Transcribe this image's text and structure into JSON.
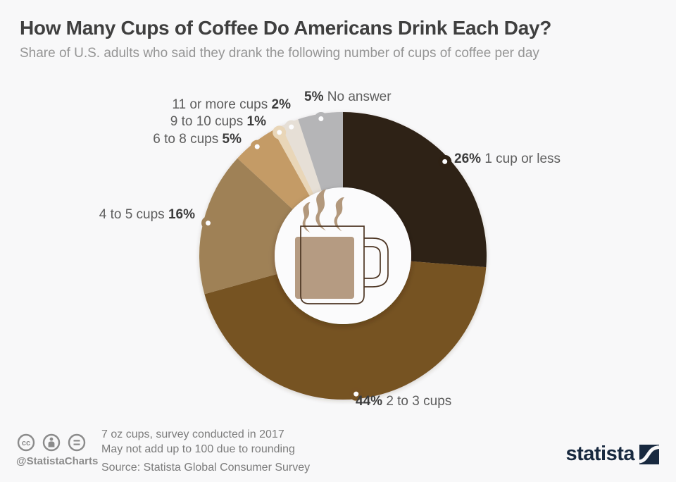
{
  "header": {
    "title": "How Many Cups of Coffee Do Americans Drink Each Day?",
    "subtitle": "Share of U.S. adults who said they drank the following number of cups of coffee per day"
  },
  "chart_data": {
    "type": "pie",
    "variant": "donut",
    "title": "How Many Cups of Coffee Do Americans Drink Each Day?",
    "unit": "%",
    "categories": [
      "1 cup or less",
      "2 to 3 cups",
      "4 to 5 cups",
      "6 to 8 cups",
      "9 to 10 cups",
      "11 or more cups",
      "No answer"
    ],
    "values": [
      26,
      44,
      16,
      5,
      1,
      2,
      5
    ],
    "start_angle_deg": 0,
    "direction": "clockwise",
    "segments": [
      {
        "label": "1 cup or less",
        "pct": "26%",
        "value": 26,
        "color": "#2e2114"
      },
      {
        "label": "2 to 3 cups",
        "pct": "44%",
        "value": 44,
        "color": "#765223"
      },
      {
        "label": "4 to 5 cups",
        "pct": "16%",
        "value": 16,
        "color": "#9f8157"
      },
      {
        "label": "6 to 8 cups",
        "pct": "5%",
        "value": 5,
        "color": "#c49b66"
      },
      {
        "label": "9 to 10 cups",
        "pct": "1%",
        "value": 1,
        "color": "#e9d6b8"
      },
      {
        "label": "11 or more cups",
        "pct": "2%",
        "value": 2,
        "color": "#e6dfd6"
      },
      {
        "label": "No answer",
        "pct": "5%",
        "value": 5,
        "color": "#b5b5b7"
      }
    ],
    "center_icon": "coffee-mug-with-steam"
  },
  "footer": {
    "license_icons": [
      "cc",
      "attribution",
      "equal"
    ],
    "handle": "@StatistaCharts",
    "notes": [
      "7 oz cups, survey conducted in 2017",
      "May not add up to 100 due to rounding"
    ],
    "source": "Source: Statista Global Consumer Survey",
    "brand": "statista",
    "brand_color": "#18293f"
  }
}
